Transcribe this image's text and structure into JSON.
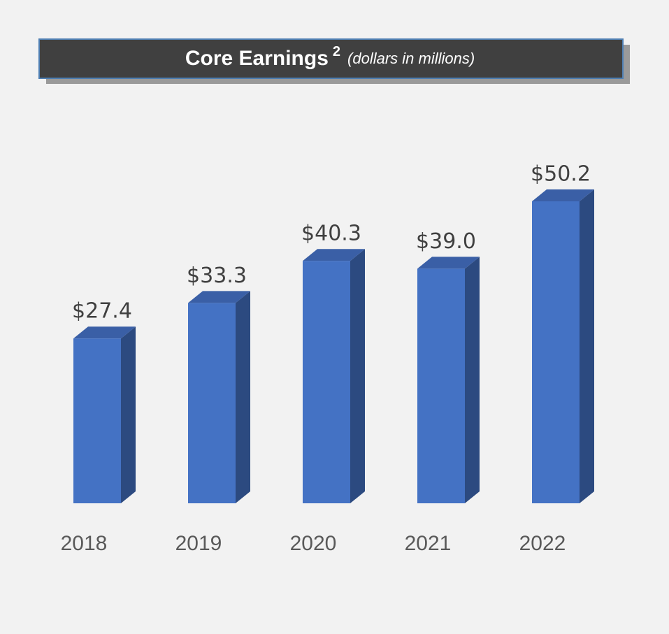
{
  "chart_data": {
    "type": "bar3d",
    "title": "Core Earnings",
    "title_footnote": "2",
    "subtitle": "(dollars in millions)",
    "categories": [
      "2018",
      "2019",
      "2020",
      "2021",
      "2022"
    ],
    "values": [
      27.4,
      33.3,
      40.3,
      39.0,
      50.2
    ],
    "value_labels": [
      "$27.4",
      "$33.3",
      "$40.3",
      "$39.0",
      "$50.2"
    ],
    "color": "#4472c4"
  }
}
